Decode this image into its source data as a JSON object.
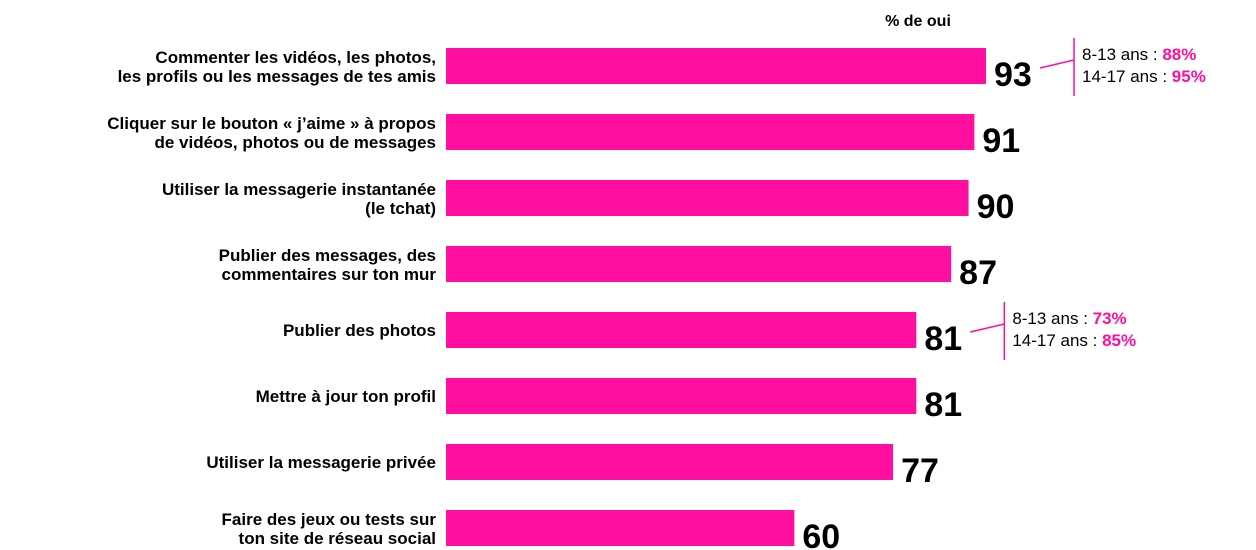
{
  "colors": {
    "bar": "#ff0fa0",
    "text": "#000000",
    "highlight": "#ff0fa0"
  },
  "chart_data": {
    "type": "bar",
    "orientation": "horizontal",
    "value_header": "% de oui",
    "categories": [
      [
        "Commenter les vidéos, les photos,",
        "les profils ou les messages de tes amis"
      ],
      [
        "Cliquer sur le bouton « j’aime » à propos",
        "de vidéos, photos ou de messages"
      ],
      [
        "Utiliser la messagerie instantanée",
        "(le tchat)"
      ],
      [
        "Publier des messages, des",
        "commentaires sur ton mur"
      ],
      [
        "Publier des photos"
      ],
      [
        "Mettre à jour ton profil"
      ],
      [
        "Utiliser la messagerie privée"
      ],
      [
        "Faire des jeux ou tests sur",
        "ton site de réseau social"
      ]
    ],
    "values": [
      93,
      91,
      90,
      87,
      81,
      81,
      77,
      60
    ],
    "xlim": [
      0,
      93
    ],
    "annotations": [
      {
        "category_index": 0,
        "lines": [
          {
            "label": "8-13 ans : ",
            "value": "88%"
          },
          {
            "label": "14-17 ans : ",
            "value": "95%"
          }
        ]
      },
      {
        "category_index": 4,
        "lines": [
          {
            "label": "8-13 ans : ",
            "value": "73%"
          },
          {
            "label": "14-17 ans : ",
            "value": "85%"
          }
        ]
      }
    ]
  }
}
